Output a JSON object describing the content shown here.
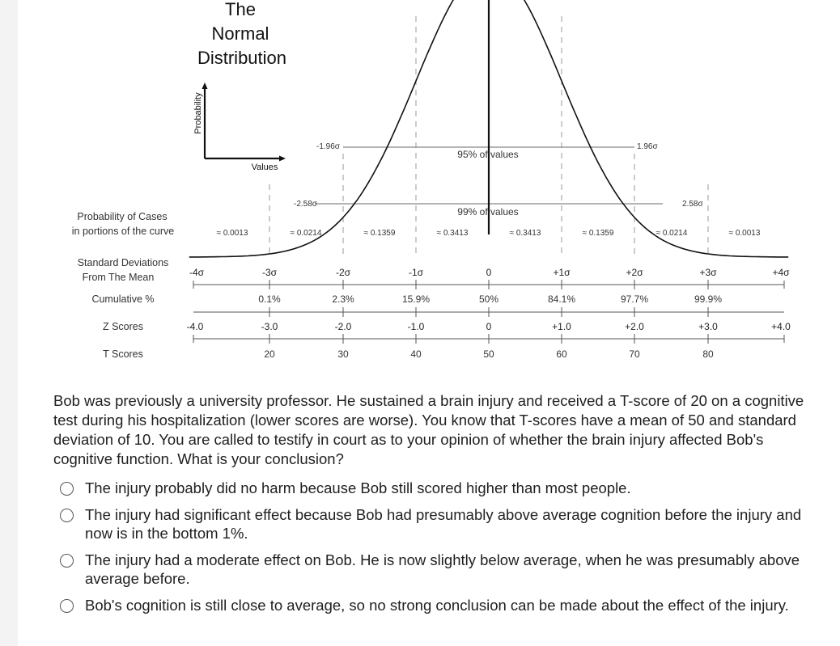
{
  "figure": {
    "title_lines": [
      "The",
      "Normal",
      "Distribution"
    ],
    "inset": {
      "y_label": "Probability",
      "x_label": "Values"
    },
    "row_labels": {
      "probability_cases": [
        "Probability of Cases",
        "in portions of the curve"
      ],
      "std_devs": [
        "Standard Deviations",
        "From The Mean"
      ],
      "cumulative": "Cumulative %",
      "z_scores": "Z Scores",
      "t_scores": "T Scores"
    },
    "annotations": {
      "ci95": "95% of values",
      "ci99": "99% of values",
      "neg_196": "-1.96σ",
      "pos_196": "1.96σ",
      "neg_258": "-2.58σ",
      "pos_258": "2.58σ"
    },
    "proportions": [
      "≈ 0.0013",
      "≈ 0.0214",
      "≈ 0.1359",
      "≈ 0.3413",
      "≈ 0.3413",
      "≈ 0.1359",
      "≈ 0.0214",
      "≈ 0.0013"
    ],
    "sd_labels": [
      "-4σ",
      "-3σ",
      "-2σ",
      "-1σ",
      "0",
      "+1σ",
      "+2σ",
      "+3σ",
      "+4σ"
    ],
    "cumulative_pct": [
      "0.1%",
      "2.3%",
      "15.9%",
      "50%",
      "84.1%",
      "97.7%",
      "99.9%"
    ],
    "z_scores": [
      "-4.0",
      "-3.0",
      "-2.0",
      "-1.0",
      "0",
      "+1.0",
      "+2.0",
      "+3.0",
      "+4.0"
    ],
    "t_scores": [
      "20",
      "30",
      "40",
      "50",
      "60",
      "70",
      "80"
    ]
  },
  "question": {
    "text": "Bob was previously a university professor. He sustained a brain injury and received a T-score of 20 on a cognitive test during his hospitalization (lower scores are worse).  You know that T-scores have a mean of 50 and standard deviation of 10. You are called to testify in court as to your opinion of whether the brain injury affected Bob's cognitive function. What is your conclusion?",
    "options": [
      "The injury probably did no harm because Bob still scored higher than most people.",
      "The injury had significant effect because Bob had presumably above average cognition before the injury and now is in the bottom 1%.",
      "The injury had a moderate effect on Bob. He is now slightly below average, when he was presumably above average before.",
      "Bob's cognition is still close to average, so no strong conclusion can be made about the effect of the injury."
    ]
  }
}
